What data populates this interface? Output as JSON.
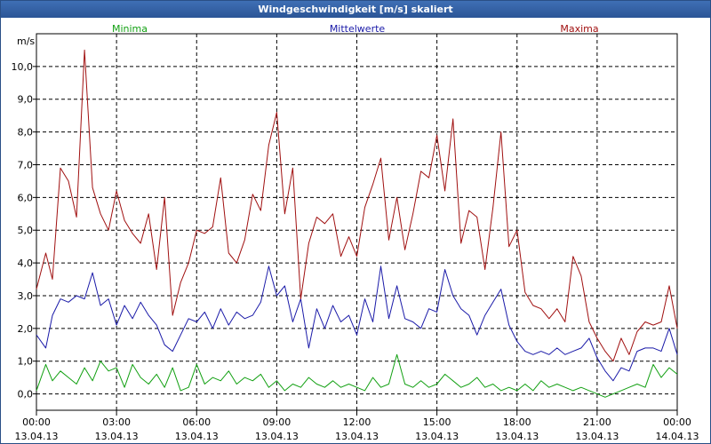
{
  "window": {
    "title": "Windgeschwindigkeit [m/s] skaliert"
  },
  "chart_data": {
    "type": "line",
    "title": "Windgeschwindigkeit [m/s] skaliert",
    "ylabel": "m/s",
    "xlabel": "",
    "ylim": [
      -0.5,
      11.0
    ],
    "xlim": [
      0,
      24
    ],
    "grid": true,
    "y_ticks": [
      "0,0",
      "1,0",
      "2,0",
      "3,0",
      "4,0",
      "5,0",
      "6,0",
      "7,0",
      "8,0",
      "9,0",
      "10,0"
    ],
    "x_ticks": [
      {
        "time": "00:00",
        "date": "13.04.13"
      },
      {
        "time": "03:00",
        "date": "13.04.13"
      },
      {
        "time": "06:00",
        "date": "13.04.13"
      },
      {
        "time": "09:00",
        "date": "13.04.13"
      },
      {
        "time": "12:00",
        "date": "13.04.13"
      },
      {
        "time": "15:00",
        "date": "13.04.13"
      },
      {
        "time": "18:00",
        "date": "13.04.13"
      },
      {
        "time": "21:00",
        "date": "13.04.13"
      },
      {
        "time": "00:00",
        "date": "14.04.13"
      }
    ],
    "colors": {
      "Minima": "#12a012",
      "Mittelwerte": "#1a1aa8",
      "Maxima": "#a01010"
    },
    "series": [
      {
        "name": "Minima",
        "x": [
          0,
          0.35,
          0.6,
          0.9,
          1.2,
          1.5,
          1.8,
          2.1,
          2.4,
          2.7,
          3,
          3.3,
          3.6,
          3.9,
          4.2,
          4.5,
          4.8,
          5.1,
          5.4,
          5.7,
          6,
          6.3,
          6.6,
          6.9,
          7.2,
          7.5,
          7.8,
          8.1,
          8.4,
          8.7,
          9,
          9.3,
          9.6,
          9.9,
          10.2,
          10.5,
          10.8,
          11.1,
          11.4,
          11.7,
          12,
          12.3,
          12.6,
          12.9,
          13.2,
          13.5,
          13.8,
          14.1,
          14.4,
          14.7,
          15,
          15.3,
          15.6,
          15.9,
          16.2,
          16.5,
          16.8,
          17.1,
          17.4,
          17.7,
          18,
          18.3,
          18.6,
          18.9,
          19.2,
          19.5,
          19.8,
          20.1,
          20.4,
          20.7,
          21,
          21.3,
          21.6,
          21.9,
          22.2,
          22.5,
          22.8,
          23.1,
          23.4,
          23.7,
          24
        ],
        "values": [
          0.1,
          0.9,
          0.4,
          0.7,
          0.5,
          0.3,
          0.8,
          0.4,
          1.0,
          0.7,
          0.8,
          0.2,
          0.9,
          0.5,
          0.3,
          0.6,
          0.2,
          0.8,
          0.1,
          0.2,
          0.9,
          0.3,
          0.5,
          0.4,
          0.7,
          0.3,
          0.5,
          0.4,
          0.6,
          0.2,
          0.4,
          0.1,
          0.3,
          0.2,
          0.5,
          0.3,
          0.2,
          0.4,
          0.2,
          0.3,
          0.2,
          0.1,
          0.5,
          0.2,
          0.3,
          1.2,
          0.3,
          0.2,
          0.4,
          0.2,
          0.3,
          0.6,
          0.4,
          0.2,
          0.3,
          0.5,
          0.2,
          0.3,
          0.1,
          0.2,
          0.1,
          0.3,
          0.1,
          0.4,
          0.2,
          0.3,
          0.2,
          0.1,
          0.2,
          0.1,
          0.0,
          -0.1,
          0.0,
          0.1,
          0.2,
          0.3,
          0.2,
          0.9,
          0.5,
          0.8,
          0.6
        ]
      },
      {
        "name": "Mittelwerte",
        "x": [
          0,
          0.35,
          0.6,
          0.9,
          1.2,
          1.5,
          1.8,
          2.1,
          2.4,
          2.7,
          3,
          3.3,
          3.6,
          3.9,
          4.2,
          4.5,
          4.8,
          5.1,
          5.4,
          5.7,
          6,
          6.3,
          6.6,
          6.9,
          7.2,
          7.5,
          7.8,
          8.1,
          8.4,
          8.7,
          9,
          9.3,
          9.6,
          9.9,
          10.2,
          10.5,
          10.8,
          11.1,
          11.4,
          11.7,
          12,
          12.3,
          12.6,
          12.9,
          13.2,
          13.5,
          13.8,
          14.1,
          14.4,
          14.7,
          15,
          15.3,
          15.6,
          15.9,
          16.2,
          16.5,
          16.8,
          17.1,
          17.4,
          17.7,
          18,
          18.3,
          18.6,
          18.9,
          19.2,
          19.5,
          19.8,
          20.1,
          20.4,
          20.7,
          21,
          21.3,
          21.6,
          21.9,
          22.2,
          22.5,
          22.8,
          23.1,
          23.4,
          23.7,
          24
        ],
        "values": [
          1.8,
          1.4,
          2.4,
          2.9,
          2.8,
          3.0,
          2.9,
          3.7,
          2.7,
          2.9,
          2.1,
          2.7,
          2.3,
          2.8,
          2.4,
          2.1,
          1.5,
          1.3,
          1.8,
          2.3,
          2.2,
          2.5,
          2.0,
          2.6,
          2.1,
          2.5,
          2.3,
          2.4,
          2.8,
          3.9,
          3.0,
          3.3,
          2.2,
          2.9,
          1.4,
          2.6,
          2.0,
          2.7,
          2.2,
          2.4,
          1.8,
          2.9,
          2.2,
          3.9,
          2.3,
          3.3,
          2.3,
          2.2,
          2.0,
          2.6,
          2.5,
          3.8,
          3.0,
          2.6,
          2.4,
          1.8,
          2.4,
          2.8,
          3.2,
          2.1,
          1.6,
          1.3,
          1.2,
          1.3,
          1.2,
          1.4,
          1.2,
          1.3,
          1.4,
          1.7,
          1.1,
          0.7,
          0.4,
          0.8,
          0.7,
          1.3,
          1.4,
          1.4,
          1.3,
          2.0,
          1.2
        ]
      },
      {
        "name": "Maxima",
        "x": [
          0,
          0.35,
          0.6,
          0.9,
          1.2,
          1.5,
          1.8,
          2.1,
          2.4,
          2.7,
          3,
          3.3,
          3.6,
          3.9,
          4.2,
          4.5,
          4.8,
          5.1,
          5.4,
          5.7,
          6,
          6.3,
          6.6,
          6.9,
          7.2,
          7.5,
          7.8,
          8.1,
          8.4,
          8.7,
          9,
          9.3,
          9.6,
          9.9,
          10.2,
          10.5,
          10.8,
          11.1,
          11.4,
          11.7,
          12,
          12.3,
          12.6,
          12.9,
          13.2,
          13.5,
          13.8,
          14.1,
          14.4,
          14.7,
          15,
          15.3,
          15.6,
          15.9,
          16.2,
          16.5,
          16.8,
          17.1,
          17.4,
          17.7,
          18,
          18.3,
          18.6,
          18.9,
          19.2,
          19.5,
          19.8,
          20.1,
          20.4,
          20.7,
          21,
          21.3,
          21.6,
          21.9,
          22.2,
          22.5,
          22.8,
          23.1,
          23.4,
          23.7,
          24
        ],
        "values": [
          3.2,
          4.3,
          3.5,
          6.9,
          6.5,
          5.4,
          10.5,
          6.3,
          5.5,
          5.0,
          6.2,
          5.3,
          4.9,
          4.6,
          5.5,
          3.8,
          6.0,
          2.4,
          3.4,
          4.0,
          5.0,
          4.9,
          5.1,
          6.6,
          4.3,
          4.0,
          4.7,
          6.1,
          5.6,
          7.6,
          8.6,
          5.5,
          6.9,
          2.9,
          4.6,
          5.4,
          5.2,
          5.5,
          4.2,
          4.8,
          4.2,
          5.7,
          6.4,
          7.2,
          4.7,
          6.0,
          4.4,
          5.5,
          6.8,
          6.6,
          7.9,
          6.2,
          8.4,
          4.6,
          5.6,
          5.4,
          3.8,
          5.7,
          8.0,
          4.5,
          5.0,
          3.1,
          2.7,
          2.6,
          2.3,
          2.6,
          2.2,
          4.2,
          3.6,
          2.2,
          1.7,
          1.3,
          1.0,
          1.7,
          1.2,
          1.9,
          2.2,
          2.1,
          2.2,
          3.3,
          2.0
        ]
      }
    ]
  }
}
